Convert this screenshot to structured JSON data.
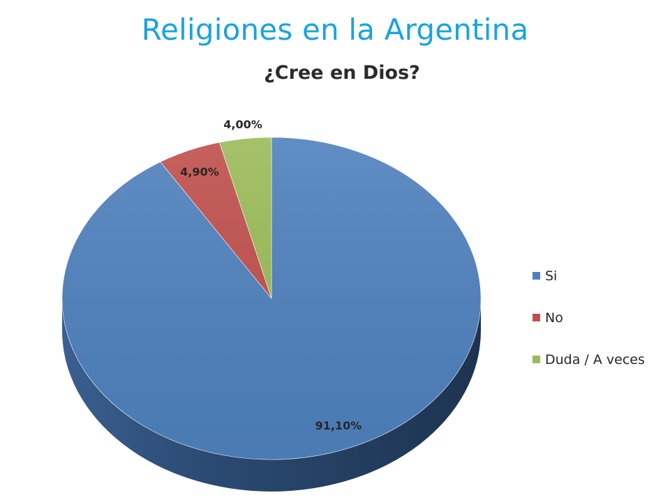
{
  "slide": {
    "title": "Religiones en la Argentina"
  },
  "chart_data": {
    "type": "pie",
    "title": "¿Cree en Dios?",
    "legend_position": "right",
    "three_d": true,
    "slices": [
      {
        "label": "Si",
        "value": 91.1,
        "display": "91,10%",
        "color": "#4f81bd"
      },
      {
        "label": "No",
        "value": 4.9,
        "display": "4,90%",
        "color": "#c0504d"
      },
      {
        "label": "Duda / A veces",
        "value": 4.0,
        "display": "4,00%",
        "color": "#9bbb59"
      }
    ]
  }
}
